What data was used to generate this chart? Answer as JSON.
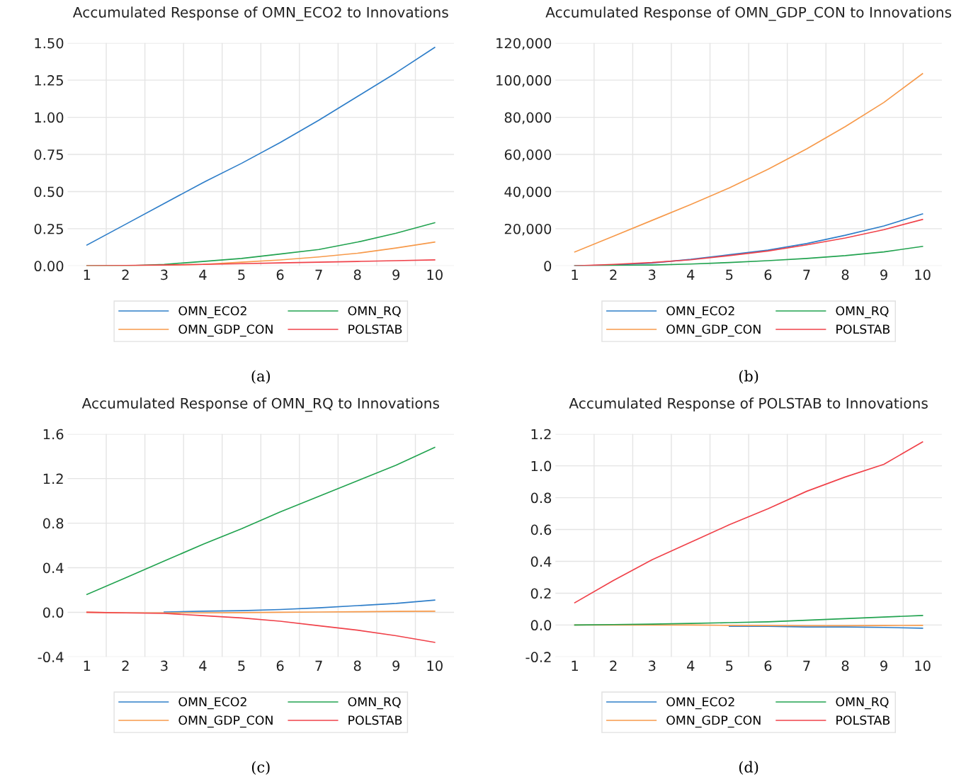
{
  "chart_data": [
    {
      "type": "line",
      "title": "Accumulated Response of OMN_ECO2 to Innovations",
      "categories": [
        "1",
        "2",
        "3",
        "4",
        "5",
        "6",
        "7",
        "8",
        "9",
        "10"
      ],
      "series": [
        {
          "name": "OMN_ECO2",
          "color": "#2e7ec9",
          "values": [
            0.14,
            0.28,
            0.42,
            0.56,
            0.69,
            0.83,
            0.98,
            1.14,
            1.3,
            1.47
          ]
        },
        {
          "name": "OMN_GDP_CON",
          "color": "#f79a4b",
          "values": [
            0,
            0,
            0.005,
            0.01,
            0.025,
            0.04,
            0.06,
            0.085,
            0.12,
            0.16
          ]
        },
        {
          "name": "OMN_RQ",
          "color": "#22a350",
          "values": [
            0,
            0,
            0.01,
            0.03,
            0.05,
            0.08,
            0.11,
            0.16,
            0.22,
            0.29
          ]
        },
        {
          "name": "POLSTAB",
          "color": "#f0424a",
          "values": [
            0,
            0.003,
            0.006,
            0.01,
            0.015,
            0.02,
            0.025,
            0.03,
            0.035,
            0.04
          ]
        }
      ],
      "ylim": [
        0,
        1.5
      ],
      "yticks": [
        {
          "value": 0,
          "label": "0.00"
        },
        {
          "value": 0.25,
          "label": "0.25"
        },
        {
          "value": 0.5,
          "label": "0.50"
        },
        {
          "value": 0.75,
          "label": "0.75"
        },
        {
          "value": 1,
          "label": "1.00"
        },
        {
          "value": 1.25,
          "label": "1.25"
        },
        {
          "value": 1.5,
          "label": "1.50"
        }
      ],
      "grid": true,
      "legend": "bottom",
      "annotations": [
        "(a)"
      ]
    },
    {
      "type": "line",
      "title": "Accumulated Response of OMN_GDP_CON to Innovations",
      "categories": [
        "1",
        "2",
        "3",
        "4",
        "5",
        "6",
        "7",
        "8",
        "9",
        "10"
      ],
      "series": [
        {
          "name": "OMN_ECO2",
          "color": "#2e7ec9",
          "values": [
            0,
            500,
            1500,
            3500,
            6000,
            8500,
            12000,
            16500,
            21500,
            28000
          ]
        },
        {
          "name": "OMN_GDP_CON",
          "color": "#f79a4b",
          "values": [
            7500,
            16000,
            24500,
            33000,
            42000,
            52000,
            63000,
            75000,
            88000,
            103500
          ]
        },
        {
          "name": "OMN_RQ",
          "color": "#22a350",
          "values": [
            0,
            200,
            500,
            1000,
            1800,
            2800,
            4000,
            5500,
            7500,
            10500
          ]
        },
        {
          "name": "POLSTAB",
          "color": "#f0424a",
          "values": [
            0,
            800,
            1800,
            3300,
            5500,
            8000,
            11300,
            15000,
            19500,
            25000
          ]
        }
      ],
      "ylim": [
        0,
        120000
      ],
      "yticks": [
        0,
        {
          "value": 20000,
          "label": "20,000"
        },
        {
          "value": 40000,
          "label": "40,000"
        },
        {
          "value": 60000,
          "label": "60,000"
        },
        {
          "value": 80000,
          "label": "80,000"
        },
        {
          "value": 100000,
          "label": "100,000"
        },
        {
          "value": 120000,
          "label": "120,000"
        }
      ],
      "grid": true,
      "legend": "bottom",
      "annotations": [
        "(b)"
      ]
    },
    {
      "type": "line",
      "title": "Accumulated Response of OMN_RQ to Innovations",
      "categories": [
        "1",
        "2",
        "3",
        "4",
        "5",
        "6",
        "7",
        "8",
        "9",
        "10"
      ],
      "series": [
        {
          "name": "OMN_ECO2",
          "color": "#2e7ec9",
          "values": [
            null,
            null,
            0.003,
            0.01,
            0.015,
            0.025,
            0.04,
            0.06,
            0.08,
            0.11
          ]
        },
        {
          "name": "OMN_GDP_CON",
          "color": "#f79a4b",
          "values": [
            0,
            -0.005,
            -0.005,
            -0.005,
            -0.003,
            0,
            0.003,
            0.005,
            0.008,
            0.01
          ]
        },
        {
          "name": "OMN_RQ",
          "color": "#22a350",
          "values": [
            0.16,
            0.31,
            0.46,
            0.61,
            0.75,
            0.9,
            1.04,
            1.18,
            1.32,
            1.48
          ]
        },
        {
          "name": "POLSTAB",
          "color": "#f0424a",
          "values": [
            0,
            -0.005,
            -0.01,
            -0.03,
            -0.05,
            -0.08,
            -0.12,
            -0.16,
            -0.21,
            -0.27
          ]
        }
      ],
      "ylim": [
        -0.4,
        1.6
      ],
      "yticks": [
        -0.4,
        {
          "value": 0,
          "label": "0.0"
        },
        0.4,
        0.8,
        1.2,
        1.6
      ],
      "grid": true,
      "legend": "bottom",
      "annotations": [
        "(c)"
      ]
    },
    {
      "type": "line",
      "title": "Accumulated Response of POLSTAB to Innovations",
      "categories": [
        "1",
        "2",
        "3",
        "4",
        "5",
        "6",
        "7",
        "8",
        "9",
        "10"
      ],
      "series": [
        {
          "name": "OMN_ECO2",
          "color": "#2e7ec9",
          "values": [
            null,
            null,
            null,
            null,
            -0.008,
            -0.008,
            -0.012,
            -0.012,
            -0.015,
            -0.02
          ]
        },
        {
          "name": "OMN_GDP_CON",
          "color": "#f79a4b",
          "values": [
            0,
            0,
            0,
            0,
            -0.002,
            -0.003,
            -0.004,
            -0.004,
            -0.003,
            -0.002
          ]
        },
        {
          "name": "OMN_RQ",
          "color": "#22a350",
          "values": [
            0,
            0.003,
            0.006,
            0.01,
            0.015,
            0.02,
            0.03,
            0.04,
            0.05,
            0.06
          ]
        },
        {
          "name": "POLSTAB",
          "color": "#f0424a",
          "values": [
            0.14,
            0.28,
            0.41,
            0.52,
            0.63,
            0.73,
            0.84,
            0.93,
            1.01,
            1.15
          ]
        }
      ],
      "ylim": [
        -0.2,
        1.2
      ],
      "yticks": [
        -0.2,
        {
          "value": 0,
          "label": "0.0"
        },
        0.2,
        0.4,
        0.6,
        0.8,
        {
          "value": 1,
          "label": "1.0"
        },
        1.2
      ],
      "grid": true,
      "legend": "bottom",
      "annotations": [
        "(d)"
      ]
    }
  ]
}
